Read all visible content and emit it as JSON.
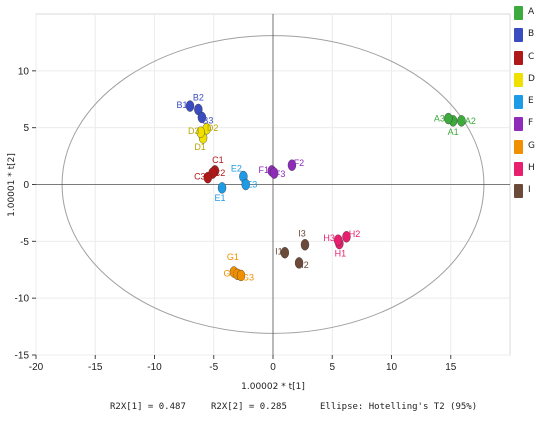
{
  "chart_data": {
    "type": "scatter",
    "xlabel": "1.00002 * t[1]",
    "ylabel": "1.00001 * t[2]",
    "xlim": [
      -20,
      20
    ],
    "ylim": [
      -15,
      15
    ],
    "xticks": [
      -20,
      -15,
      -10,
      -5,
      0,
      5,
      10,
      15
    ],
    "yticks": [
      -15,
      -10,
      -5,
      0,
      5,
      10
    ],
    "ellipse": {
      "center": [
        0,
        0
      ],
      "rx": 17.8,
      "ry": 13.1
    },
    "groups": [
      {
        "name": "A",
        "color": "#3daa3d",
        "points": [
          {
            "label": "A1",
            "x": 15.2,
            "y": 5.6
          },
          {
            "label": "A2",
            "x": 15.9,
            "y": 5.6
          },
          {
            "label": "A3",
            "x": 14.8,
            "y": 5.8
          }
        ]
      },
      {
        "name": "B",
        "color": "#3b4cc0",
        "points": [
          {
            "label": "B1",
            "x": -7.0,
            "y": 6.9
          },
          {
            "label": "B2",
            "x": -6.3,
            "y": 6.6
          },
          {
            "label": "B3",
            "x": -6.0,
            "y": 5.9
          }
        ]
      },
      {
        "name": "C",
        "color": "#b01818",
        "points": [
          {
            "label": "C1",
            "x": -4.9,
            "y": 1.2
          },
          {
            "label": "C2",
            "x": -5.1,
            "y": 1.0
          },
          {
            "label": "C3",
            "x": -5.5,
            "y": 0.6
          }
        ]
      },
      {
        "name": "D",
        "color": "#f0e000",
        "points": [
          {
            "label": "D1",
            "x": -5.9,
            "y": 4.1
          },
          {
            "label": "D2",
            "x": -5.6,
            "y": 4.9
          },
          {
            "label": "D3",
            "x": -6.1,
            "y": 4.6
          }
        ]
      },
      {
        "name": "E",
        "color": "#1e9be6",
        "points": [
          {
            "label": "E1",
            "x": -4.3,
            "y": -0.3
          },
          {
            "label": "E2",
            "x": -2.5,
            "y": 0.7
          },
          {
            "label": "E3",
            "x": -2.3,
            "y": 0.0
          }
        ]
      },
      {
        "name": "F",
        "color": "#8e2bb8",
        "points": [
          {
            "label": "F1",
            "x": -0.1,
            "y": 1.2
          },
          {
            "label": "F2",
            "x": 1.6,
            "y": 1.7
          },
          {
            "label": "F3",
            "x": 0.1,
            "y": 1.0
          }
        ]
      },
      {
        "name": "G",
        "color": "#f09000",
        "points": [
          {
            "label": "G1",
            "x": -3.3,
            "y": -7.7
          },
          {
            "label": "G2",
            "x": -3.0,
            "y": -7.9
          },
          {
            "label": "G3",
            "x": -2.7,
            "y": -8.0
          }
        ]
      },
      {
        "name": "H",
        "color": "#e81f6e",
        "points": [
          {
            "label": "H1",
            "x": 5.6,
            "y": -5.2
          },
          {
            "label": "H2",
            "x": 6.2,
            "y": -4.6
          },
          {
            "label": "H3",
            "x": 5.5,
            "y": -4.9
          }
        ]
      },
      {
        "name": "I",
        "color": "#6b4a3a",
        "points": [
          {
            "label": "I1",
            "x": 1.0,
            "y": -6.0
          },
          {
            "label": "I2",
            "x": 2.2,
            "y": -6.9
          },
          {
            "label": "I3",
            "x": 2.7,
            "y": -5.3
          }
        ]
      }
    ]
  },
  "footer": {
    "r2x1": "R2X[1] = 0.487",
    "r2x2": "R2X[2] = 0.285",
    "ellipse": "Ellipse: Hotelling's T2 (95%)"
  },
  "legend_labels": [
    "A",
    "B",
    "C",
    "D",
    "E",
    "F",
    "G",
    "H",
    "I"
  ]
}
